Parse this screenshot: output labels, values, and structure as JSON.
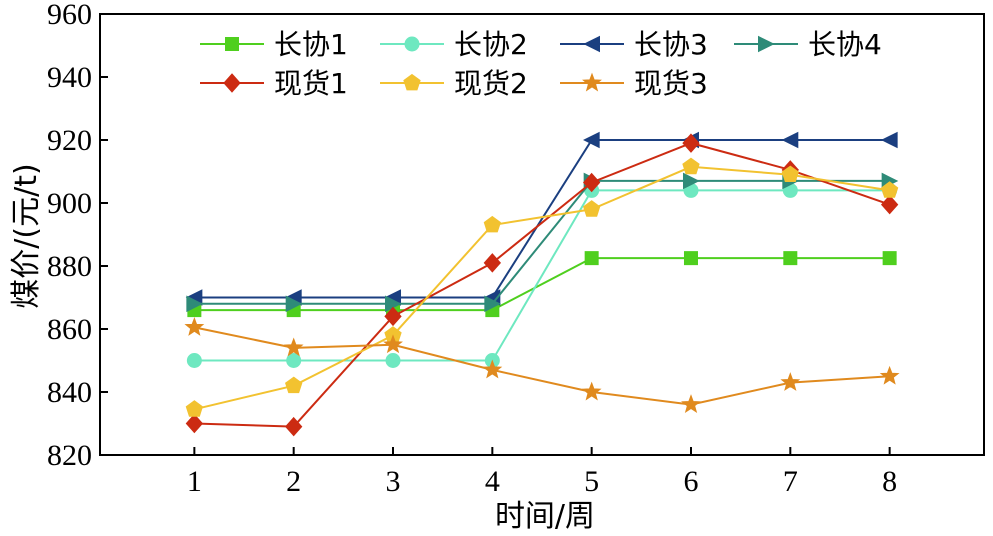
{
  "chart_data": {
    "type": "line",
    "xlabel": "时间/周",
    "ylabel": "煤价/(元/t)",
    "x": [
      1,
      2,
      3,
      4,
      5,
      6,
      7,
      8
    ],
    "xlim": [
      0.05,
      8.95
    ],
    "ylim": [
      820,
      960
    ],
    "yticks": [
      820,
      840,
      860,
      880,
      900,
      920,
      940,
      960
    ],
    "grid": false,
    "legend_position": "top",
    "series": [
      {
        "name": "长协1",
        "color": "#4fcf1e",
        "marker": "square",
        "values": [
          866,
          866,
          866,
          866,
          882.5,
          882.5,
          882.5,
          882.5
        ]
      },
      {
        "name": "长协2",
        "color": "#6ee8c0",
        "marker": "circle",
        "values": [
          850,
          850,
          850,
          850,
          904,
          904,
          904,
          904
        ]
      },
      {
        "name": "长协3",
        "color": "#1b3f80",
        "marker": "triangle-left",
        "values": [
          870,
          870,
          870,
          870,
          920,
          920,
          920,
          920
        ]
      },
      {
        "name": "长协4",
        "color": "#2e8b78",
        "marker": "triangle-right",
        "values": [
          868,
          868,
          868,
          868,
          907,
          907,
          907,
          907
        ]
      },
      {
        "name": "现货1",
        "color": "#cc2b12",
        "marker": "diamond",
        "values": [
          830,
          829,
          864,
          881,
          906.5,
          919,
          910.5,
          899.5
        ]
      },
      {
        "name": "现货2",
        "color": "#f2c230",
        "marker": "pentagon",
        "values": [
          834.5,
          842,
          858,
          893,
          898,
          911.5,
          909,
          904
        ]
      },
      {
        "name": "现货3",
        "color": "#e08a1e",
        "marker": "star",
        "values": [
          860.5,
          854,
          855,
          847,
          840,
          836,
          843,
          845
        ]
      }
    ]
  }
}
